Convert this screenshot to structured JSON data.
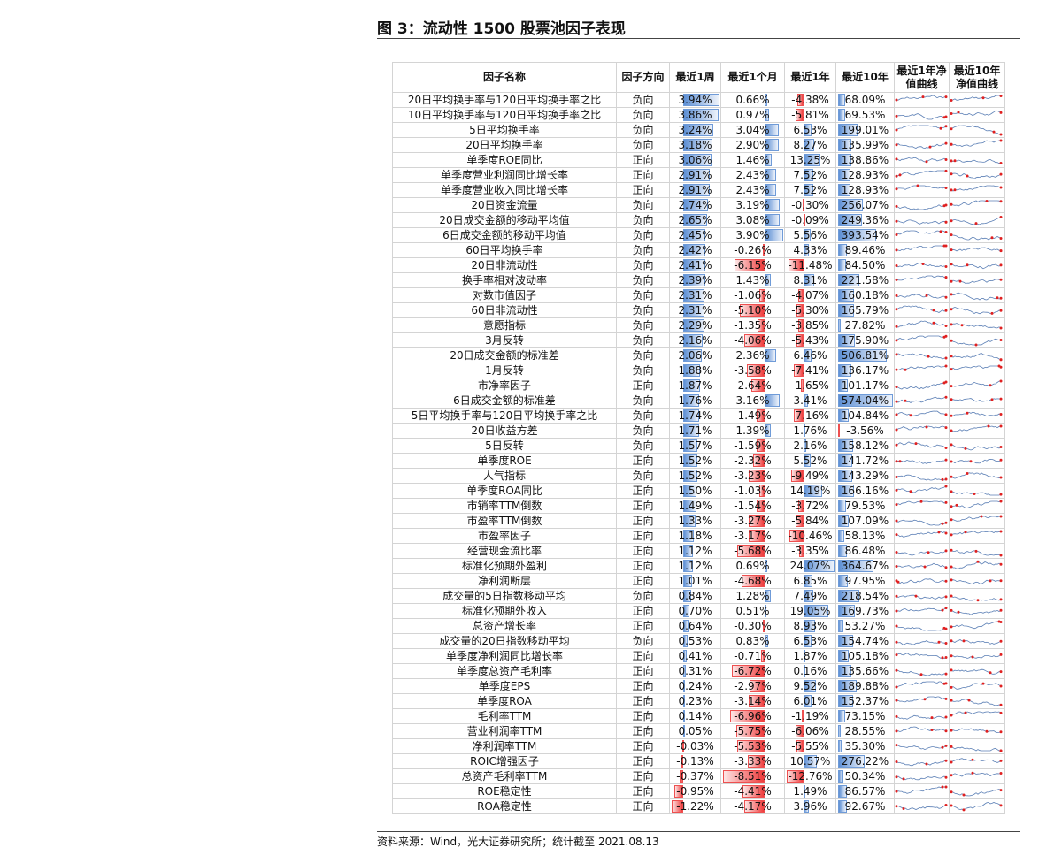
{
  "title": "图 3：流动性 1500 股票池因子表现",
  "table": {
    "headers": [
      "因子名称",
      "因子方向",
      "最近1周",
      "最近1个月",
      "最近1年",
      "最近10年",
      "最近1年净值曲线",
      "最近10年净值曲线"
    ],
    "rows": [
      [
        "20日平均换手率与120日平均换手率之比",
        "负向",
        "3.94%",
        "0.66%",
        "-4.38%",
        "68.09%"
      ],
      [
        "10日平均换手率与120日平均换手率之比",
        "负向",
        "3.86%",
        "0.97%",
        "-5.81%",
        "69.53%"
      ],
      [
        "5日平均换手率",
        "负向",
        "3.24%",
        "3.04%",
        "6.53%",
        "199.01%"
      ],
      [
        "20日平均换手率",
        "负向",
        "3.18%",
        "2.90%",
        "8.27%",
        "135.99%"
      ],
      [
        "单季度ROE同比",
        "正向",
        "3.06%",
        "1.46%",
        "13.25%",
        "138.86%"
      ],
      [
        "单季度营业利润同比增长率",
        "正向",
        "2.91%",
        "2.43%",
        "7.52%",
        "128.93%"
      ],
      [
        "单季度营业收入同比增长率",
        "正向",
        "2.91%",
        "2.43%",
        "7.52%",
        "128.93%"
      ],
      [
        "20日资金流量",
        "负向",
        "2.74%",
        "3.19%",
        "-0.30%",
        "256.07%"
      ],
      [
        "20日成交金额的移动平均值",
        "负向",
        "2.65%",
        "3.08%",
        "-0.09%",
        "249.36%"
      ],
      [
        "6日成交金额的移动平均值",
        "负向",
        "2.45%",
        "3.90%",
        "5.56%",
        "393.54%"
      ],
      [
        "60日平均换手率",
        "负向",
        "2.42%",
        "-0.26%",
        "4.33%",
        "89.46%"
      ],
      [
        "20日非流动性",
        "负向",
        "2.41%",
        "-6.15%",
        "-11.48%",
        "84.50%"
      ],
      [
        "换手率相对波动率",
        "负向",
        "2.39%",
        "1.43%",
        "8.31%",
        "221.58%"
      ],
      [
        "对数市值因子",
        "负向",
        "2.31%",
        "-1.06%",
        "-4.07%",
        "160.18%"
      ],
      [
        "60日非流动性",
        "负向",
        "2.31%",
        "-5.10%",
        "-5.30%",
        "165.79%"
      ],
      [
        "意愿指标",
        "负向",
        "2.29%",
        "-1.35%",
        "-3.85%",
        "27.82%"
      ],
      [
        "3月反转",
        "负向",
        "2.16%",
        "-4.06%",
        "-5.43%",
        "175.90%"
      ],
      [
        "20日成交金额的标准差",
        "负向",
        "2.06%",
        "2.36%",
        "6.46%",
        "506.81%"
      ],
      [
        "1月反转",
        "负向",
        "1.88%",
        "-3.58%",
        "-7.41%",
        "136.17%"
      ],
      [
        "市净率因子",
        "正向",
        "1.87%",
        "-2.64%",
        "-1.65%",
        "101.17%"
      ],
      [
        "6日成交金额的标准差",
        "负向",
        "1.76%",
        "3.16%",
        "3.41%",
        "574.04%"
      ],
      [
        "5日平均换手率与120日平均换手率之比",
        "负向",
        "1.74%",
        "-1.49%",
        "-7.16%",
        "104.84%"
      ],
      [
        "20日收益方差",
        "负向",
        "1.71%",
        "1.39%",
        "1.76%",
        "-3.56%"
      ],
      [
        "5日反转",
        "负向",
        "1.57%",
        "-1.59%",
        "2.16%",
        "158.12%"
      ],
      [
        "单季度ROE",
        "正向",
        "1.52%",
        "-2.32%",
        "5.52%",
        "141.72%"
      ],
      [
        "人气指标",
        "负向",
        "1.52%",
        "-3.23%",
        "-9.49%",
        "143.29%"
      ],
      [
        "单季度ROA同比",
        "正向",
        "1.50%",
        "-1.03%",
        "14.19%",
        "166.16%"
      ],
      [
        "市销率TTM倒数",
        "正向",
        "1.49%",
        "-1.54%",
        "-3.72%",
        "79.53%"
      ],
      [
        "市盈率TTM倒数",
        "正向",
        "1.33%",
        "-3.27%",
        "-5.84%",
        "107.09%"
      ],
      [
        "市盈率因子",
        "正向",
        "1.18%",
        "-3.17%",
        "-10.46%",
        "58.13%"
      ],
      [
        "经营现金流比率",
        "正向",
        "1.12%",
        "-5.68%",
        "-3.35%",
        "86.48%"
      ],
      [
        "标准化预期外盈利",
        "正向",
        "1.12%",
        "0.69%",
        "24.07%",
        "364.67%"
      ],
      [
        "净利润断层",
        "正向",
        "1.01%",
        "-4.68%",
        "6.85%",
        "97.95%"
      ],
      [
        "成交量的5日指数移动平均",
        "负向",
        "0.84%",
        "1.28%",
        "7.49%",
        "218.54%"
      ],
      [
        "标准化预期外收入",
        "正向",
        "0.70%",
        "0.51%",
        "19.05%",
        "169.73%"
      ],
      [
        "总资产增长率",
        "正向",
        "0.64%",
        "-0.30%",
        "8.93%",
        "53.27%"
      ],
      [
        "成交量的20日指数移动平均",
        "负向",
        "0.53%",
        "0.83%",
        "6.53%",
        "154.74%"
      ],
      [
        "单季度净利润同比增长率",
        "正向",
        "0.41%",
        "-0.71%",
        "1.87%",
        "105.18%"
      ],
      [
        "单季度总资产毛利率",
        "正向",
        "0.31%",
        "-6.72%",
        "0.16%",
        "135.66%"
      ],
      [
        "单季度EPS",
        "正向",
        "0.24%",
        "-2.97%",
        "9.52%",
        "189.88%"
      ],
      [
        "单季度ROA",
        "正向",
        "0.23%",
        "-3.14%",
        "6.01%",
        "152.37%"
      ],
      [
        "毛利率TTM",
        "正向",
        "0.14%",
        "-6.96%",
        "-1.19%",
        "73.15%"
      ],
      [
        "营业利润率TTM",
        "正向",
        "0.05%",
        "-5.75%",
        "-6.06%",
        "28.55%"
      ],
      [
        "净利润率TTM",
        "正向",
        "-0.03%",
        "-5.53%",
        "-5.55%",
        "35.30%"
      ],
      [
        "ROIC增强因子",
        "正向",
        "-0.13%",
        "-3.33%",
        "10.57%",
        "276.22%"
      ],
      [
        "总资产毛利率TTM",
        "正向",
        "-0.37%",
        "-8.51%",
        "-12.76%",
        "50.34%"
      ],
      [
        "ROE稳定性",
        "正向",
        "-0.95%",
        "-4.41%",
        "1.49%",
        "86.57%"
      ],
      [
        "ROA稳定性",
        "正向",
        "-1.22%",
        "-4.17%",
        "3.96%",
        "92.67%"
      ]
    ]
  },
  "source": "资料来源：Wind，光大证券研究所；统计截至 2021.08.13"
}
